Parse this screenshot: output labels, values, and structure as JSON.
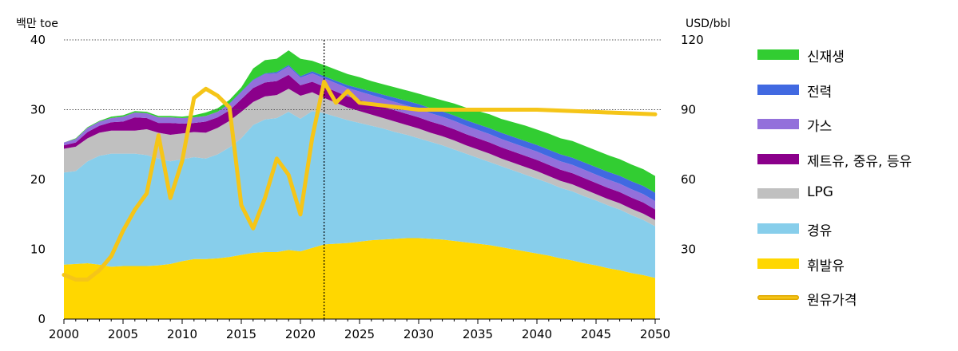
{
  "chart_data": {
    "type": "area",
    "ylabel": "백만 toe",
    "y2label": "USD/bbl",
    "ylim": [
      0,
      40
    ],
    "y2lim": [
      0,
      120
    ],
    "yticks": [
      "0",
      "10",
      "20",
      "30",
      "40"
    ],
    "y2ticks": [
      "30",
      "60",
      "90",
      "120"
    ],
    "xticks": [
      "2000",
      "2005",
      "2010",
      "2015",
      "2020",
      "2025",
      "2030",
      "2035",
      "2040",
      "2045",
      "2050"
    ],
    "grid": "dotted horizontal at 30 and 40",
    "forecast_start_marker": 2022,
    "x": [
      2000,
      2001,
      2002,
      2003,
      2004,
      2005,
      2006,
      2007,
      2008,
      2009,
      2010,
      2011,
      2012,
      2013,
      2014,
      2015,
      2016,
      2017,
      2018,
      2019,
      2020,
      2021,
      2022,
      2023,
      2024,
      2025,
      2026,
      2027,
      2028,
      2029,
      2030,
      2031,
      2032,
      2033,
      2034,
      2035,
      2036,
      2037,
      2038,
      2039,
      2040,
      2041,
      2042,
      2043,
      2044,
      2045,
      2046,
      2047,
      2048,
      2049,
      2050
    ],
    "series": [
      {
        "name": "휘발유",
        "color": "#ffd700",
        "values": [
          7.8,
          7.9,
          8.0,
          7.8,
          7.5,
          7.6,
          7.6,
          7.6,
          7.7,
          7.9,
          8.3,
          8.6,
          8.6,
          8.7,
          8.9,
          9.2,
          9.5,
          9.6,
          9.6,
          9.9,
          9.7,
          10.2,
          10.7,
          10.8,
          10.9,
          11.1,
          11.3,
          11.4,
          11.5,
          11.6,
          11.6,
          11.5,
          11.4,
          11.2,
          11.0,
          10.8,
          10.6,
          10.3,
          10.0,
          9.7,
          9.4,
          9.1,
          8.7,
          8.4,
          8.0,
          7.7,
          7.3,
          7.0,
          6.6,
          6.3,
          5.9
        ]
      },
      {
        "name": "경유",
        "color": "#87ceeb",
        "values": [
          13.2,
          13.3,
          14.6,
          15.6,
          16.2,
          16.1,
          16.1,
          15.9,
          15.3,
          14.7,
          14.6,
          14.6,
          14.4,
          14.9,
          15.7,
          16.7,
          18.3,
          19.0,
          19.2,
          19.8,
          19.0,
          19.6,
          18.8,
          18.2,
          17.6,
          17.0,
          16.4,
          15.9,
          15.3,
          14.8,
          14.3,
          13.9,
          13.5,
          13.1,
          12.7,
          12.3,
          11.9,
          11.6,
          11.3,
          11.0,
          10.7,
          10.4,
          10.1,
          9.9,
          9.6,
          9.3,
          9.0,
          8.7,
          8.3,
          7.9,
          7.4
        ]
      },
      {
        "name": "LPG",
        "color": "#c0c0c0",
        "values": [
          3.4,
          3.5,
          3.3,
          3.3,
          3.3,
          3.3,
          3.3,
          3.7,
          3.7,
          3.8,
          3.7,
          3.6,
          3.7,
          3.8,
          3.8,
          3.8,
          3.3,
          3.3,
          3.3,
          3.3,
          3.3,
          2.7,
          2.2,
          2.0,
          1.8,
          1.7,
          1.6,
          1.5,
          1.5,
          1.4,
          1.4,
          1.3,
          1.3,
          1.3,
          1.2,
          1.2,
          1.2,
          1.1,
          1.1,
          1.1,
          1.1,
          1.0,
          1.0,
          1.0,
          1.0,
          0.9,
          0.9,
          0.9,
          0.9,
          0.9,
          0.9
        ]
      },
      {
        "name": "제트유, 중유, 등유",
        "color": "#8b008b",
        "values": [
          0.5,
          0.6,
          0.9,
          1.0,
          1.2,
          1.3,
          1.9,
          1.6,
          1.4,
          1.7,
          1.4,
          1.3,
          1.6,
          1.5,
          1.5,
          1.8,
          2.0,
          2.0,
          2.0,
          2.0,
          1.5,
          1.5,
          1.6,
          1.6,
          1.6,
          1.6,
          1.6,
          1.6,
          1.6,
          1.6,
          1.6,
          1.6,
          1.6,
          1.6,
          1.6,
          1.6,
          1.6,
          1.6,
          1.6,
          1.6,
          1.6,
          1.6,
          1.6,
          1.6,
          1.6,
          1.6,
          1.6,
          1.6,
          1.6,
          1.6,
          1.5
        ]
      },
      {
        "name": "가스",
        "color": "#9370db",
        "values": [
          0.4,
          0.5,
          0.6,
          0.6,
          0.6,
          0.7,
          0.7,
          0.7,
          0.8,
          0.8,
          0.8,
          0.8,
          0.8,
          0.8,
          0.9,
          1.0,
          1.1,
          1.2,
          1.1,
          1.2,
          1.1,
          1.2,
          1.2,
          1.2,
          1.2,
          1.2,
          1.2,
          1.2,
          1.2,
          1.2,
          1.2,
          1.2,
          1.2,
          1.2,
          1.2,
          1.2,
          1.2,
          1.2,
          1.2,
          1.2,
          1.2,
          1.2,
          1.2,
          1.2,
          1.2,
          1.2,
          1.2,
          1.2,
          1.2,
          1.2,
          1.2
        ]
      },
      {
        "name": "전력",
        "color": "#4169e1",
        "values": [
          0.0,
          0.0,
          0.0,
          0.0,
          0.0,
          0.0,
          0.0,
          0.0,
          0.0,
          0.0,
          0.0,
          0.0,
          0.0,
          0.0,
          0.1,
          0.1,
          0.1,
          0.1,
          0.2,
          0.2,
          0.2,
          0.3,
          0.3,
          0.35,
          0.4,
          0.45,
          0.5,
          0.55,
          0.6,
          0.65,
          0.7,
          0.72,
          0.75,
          0.78,
          0.8,
          0.82,
          0.85,
          0.88,
          0.9,
          0.92,
          0.95,
          0.97,
          1.0,
          1.02,
          1.05,
          1.07,
          1.1,
          1.12,
          1.15,
          1.17,
          1.2
        ]
      },
      {
        "name": "신재생",
        "color": "#32cd32",
        "values": [
          0.0,
          0.1,
          0.1,
          0.1,
          0.2,
          0.2,
          0.2,
          0.2,
          0.2,
          0.2,
          0.2,
          0.3,
          0.5,
          0.5,
          0.5,
          0.6,
          1.6,
          1.9,
          1.9,
          2.1,
          2.5,
          1.5,
          1.6,
          1.6,
          1.6,
          1.6,
          1.5,
          1.5,
          1.5,
          1.5,
          1.5,
          1.6,
          1.6,
          1.7,
          1.8,
          1.9,
          2.0,
          2.0,
          2.1,
          2.2,
          2.2,
          2.3,
          2.3,
          2.4,
          2.4,
          2.4,
          2.4,
          2.4,
          2.4,
          2.4,
          2.4
        ]
      }
    ],
    "line_series": {
      "name": "원유가격",
      "axis": "right",
      "color": "#f5c518",
      "x": [
        2000,
        2001,
        2002,
        2003,
        2004,
        2005,
        2006,
        2007,
        2008,
        2009,
        2010,
        2011,
        2012,
        2013,
        2014,
        2015,
        2016,
        2017,
        2018,
        2019,
        2020,
        2021,
        2022,
        2023,
        2024,
        2025,
        2030,
        2035,
        2040,
        2045,
        2050
      ],
      "values": [
        19,
        17,
        17,
        21,
        27,
        38,
        47,
        54,
        79,
        52,
        68,
        95,
        99,
        96,
        91,
        49,
        39,
        52,
        69,
        62,
        45,
        78,
        102,
        93,
        98,
        93,
        90,
        90,
        90,
        89,
        88
      ]
    }
  },
  "legend": [
    {
      "name": "신재생",
      "color": "#32cd32",
      "kind": "area"
    },
    {
      "name": "전력",
      "color": "#4169e1",
      "kind": "area"
    },
    {
      "name": "가스",
      "color": "#9370db",
      "kind": "area"
    },
    {
      "name": "제트유, 중유, 등유",
      "color": "#8b008b",
      "kind": "area"
    },
    {
      "name": "LPG",
      "color": "#c0c0c0",
      "kind": "area"
    },
    {
      "name": "경유",
      "color": "#87ceeb",
      "kind": "area"
    },
    {
      "name": "휘발유",
      "color": "#ffd700",
      "kind": "area"
    },
    {
      "name": "원유가격",
      "color": "#f5c518",
      "kind": "line"
    }
  ]
}
